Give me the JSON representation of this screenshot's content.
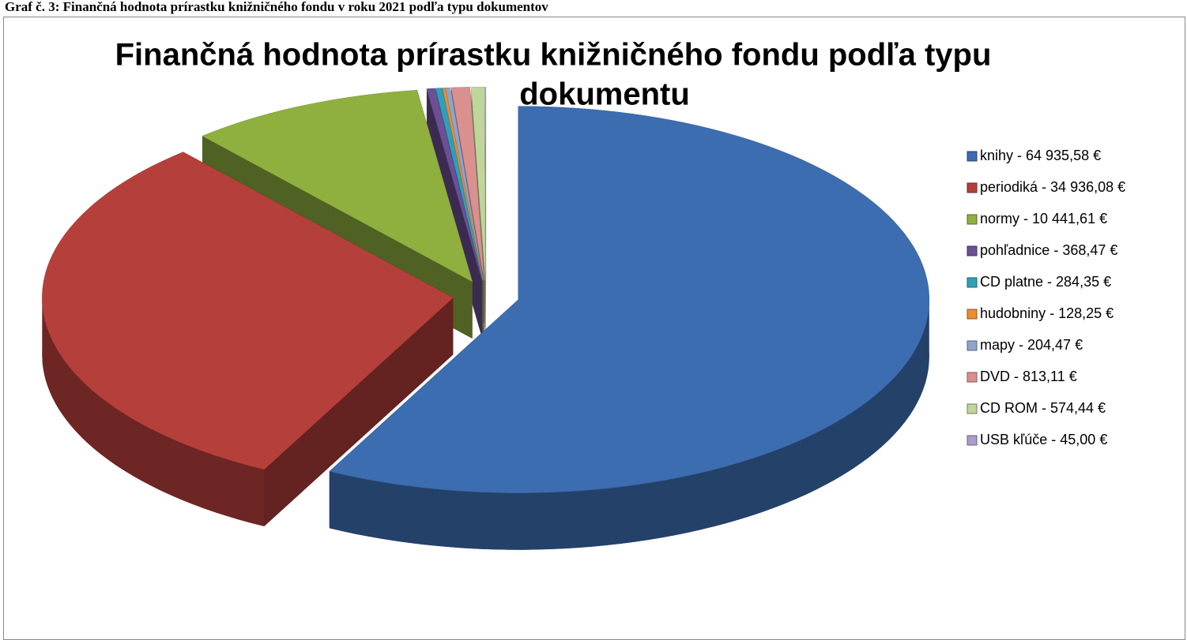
{
  "caption": "Graf č. 3: Finančná hodnota prírastku knižničného fondu v roku 2021 podľa typu dokumentov",
  "chart_data": {
    "type": "pie3d",
    "title": [
      "Finančná hodnota prírastku knižničného fondu podľa typu",
      "dokumentu"
    ],
    "categories": [
      " knihy - 64 935,58 €",
      "periodiká - 34 936,08 €",
      "normy - 10 441,61 €",
      "pohľadnice - 368,47 €",
      "CD platne - 284,35 €",
      "hudobniny - 128,25 €",
      "mapy - 204,47 €",
      "DVD - 813,11 €",
      "CD ROM - 574,44 €",
      "USB kľúče - 45,00 €"
    ],
    "values": [
      64935.58,
      34936.08,
      10441.61,
      368.47,
      284.35,
      128.25,
      204.47,
      813.11,
      574.44,
      45.0
    ],
    "colors": [
      "#3c6db0",
      "#b5403b",
      "#8fb03f",
      "#6d4f94",
      "#2f9fbb",
      "#ea8c30",
      "#8ea5ca",
      "#d9908e",
      "#bfd69a",
      "#ad9ccb"
    ],
    "legend": "right",
    "exploded": true
  }
}
